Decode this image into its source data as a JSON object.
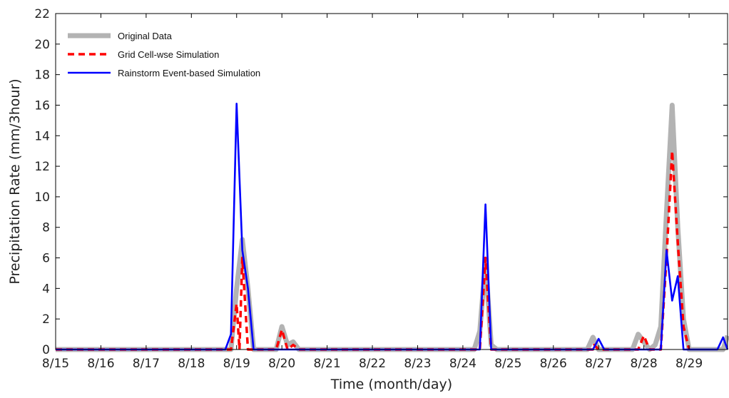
{
  "chart_data": {
    "type": "line",
    "xlabel": "Time (month/day)",
    "ylabel": "Precipitation Rate (mm/3hour)",
    "ylim": [
      0,
      22
    ],
    "xlim": [
      15,
      29.85
    ],
    "x_ticks": [
      15,
      16,
      17,
      18,
      19,
      20,
      21,
      22,
      23,
      24,
      25,
      26,
      27,
      28,
      29
    ],
    "x_tick_labels": [
      "8/15",
      "8/16",
      "8/17",
      "8/18",
      "8/19",
      "8/20",
      "8/21",
      "8/22",
      "8/23",
      "8/24",
      "8/25",
      "8/26",
      "8/27",
      "8/28",
      "8/29"
    ],
    "y_ticks": [
      0,
      2,
      4,
      6,
      8,
      10,
      12,
      14,
      16,
      18,
      20,
      22
    ],
    "grid": false,
    "legend_position": "top-left",
    "series": [
      {
        "name": "Original Data",
        "color": "#b3b3b3",
        "style": "solid-thick",
        "points": [
          [
            15.0,
            0
          ],
          [
            18.75,
            0
          ],
          [
            18.875,
            0
          ],
          [
            19.0,
            4
          ],
          [
            19.125,
            7.2
          ],
          [
            19.25,
            4
          ],
          [
            19.375,
            0
          ],
          [
            19.875,
            0
          ],
          [
            20.0,
            1.5
          ],
          [
            20.125,
            0.3
          ],
          [
            20.25,
            0.5
          ],
          [
            20.375,
            0
          ],
          [
            24.25,
            0
          ],
          [
            24.375,
            1.2
          ],
          [
            24.5,
            5.8
          ],
          [
            24.625,
            0.3
          ],
          [
            24.75,
            0
          ],
          [
            26.75,
            0
          ],
          [
            26.875,
            0.8
          ],
          [
            27.0,
            0
          ],
          [
            27.75,
            0
          ],
          [
            27.875,
            1
          ],
          [
            28.0,
            0.5
          ],
          [
            28.125,
            0
          ],
          [
            28.25,
            0.3
          ],
          [
            28.375,
            1.5
          ],
          [
            28.5,
            9
          ],
          [
            28.625,
            16
          ],
          [
            28.75,
            8
          ],
          [
            28.875,
            2
          ],
          [
            29.0,
            0
          ],
          [
            29.75,
            0
          ],
          [
            29.85,
            0.9
          ]
        ]
      },
      {
        "name": "Grid Cell-wse Simulation",
        "color": "#ff0000",
        "style": "dashed",
        "points": [
          [
            15.0,
            0
          ],
          [
            18.875,
            0
          ],
          [
            19.0,
            3
          ],
          [
            19.0625,
            0
          ],
          [
            19.125,
            6
          ],
          [
            19.25,
            0
          ],
          [
            19.375,
            0
          ],
          [
            19.875,
            0
          ],
          [
            20.0,
            1.3
          ],
          [
            20.125,
            0
          ],
          [
            20.25,
            0.3
          ],
          [
            20.375,
            0
          ],
          [
            24.375,
            0
          ],
          [
            24.5,
            6
          ],
          [
            24.625,
            0
          ],
          [
            26.875,
            0
          ],
          [
            26.9,
            0.3
          ],
          [
            27.0,
            0
          ],
          [
            27.875,
            0
          ],
          [
            28.0,
            0.9
          ],
          [
            28.125,
            0
          ],
          [
            28.375,
            0
          ],
          [
            28.5,
            6
          ],
          [
            28.625,
            13
          ],
          [
            28.75,
            7
          ],
          [
            28.875,
            1.5
          ],
          [
            29.0,
            0
          ]
        ]
      },
      {
        "name": "Rainstorm Event-based Simulation",
        "color": "#0000ff",
        "style": "solid",
        "points": [
          [
            15.0,
            0
          ],
          [
            18.75,
            0
          ],
          [
            18.875,
            1
          ],
          [
            19.0,
            16.1
          ],
          [
            19.125,
            6.5
          ],
          [
            19.25,
            4
          ],
          [
            19.375,
            0
          ],
          [
            24.375,
            0
          ],
          [
            24.5,
            9.5
          ],
          [
            24.625,
            0
          ],
          [
            26.875,
            0
          ],
          [
            27.0,
            0.7
          ],
          [
            27.125,
            0
          ],
          [
            28.375,
            0
          ],
          [
            28.5,
            6.5
          ],
          [
            28.625,
            3.2
          ],
          [
            28.75,
            4.8
          ],
          [
            28.875,
            0
          ],
          [
            29.625,
            0
          ],
          [
            29.75,
            0.8
          ],
          [
            29.85,
            0
          ]
        ]
      }
    ]
  }
}
